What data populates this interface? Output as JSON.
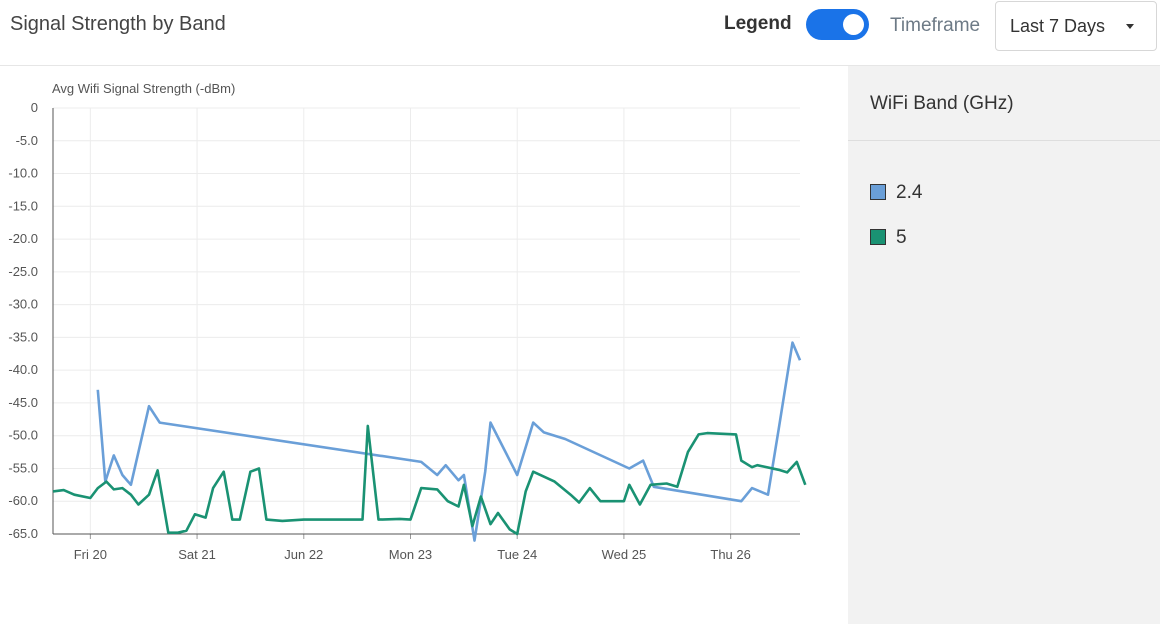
{
  "header": {
    "title": "Signal Strength by Band",
    "legend_label": "Legend",
    "legend_on": true,
    "timeframe_label": "Timeframe",
    "timeframe_value": "Last 7 Days"
  },
  "legend_panel": {
    "title": "WiFi Band (GHz)",
    "items": [
      {
        "label": "2.4",
        "color": "#6a9fd8"
      },
      {
        "label": "5",
        "color": "#1a9273"
      }
    ]
  },
  "chart_data": {
    "type": "line",
    "ylabel": "Avg Wifi Signal Strength (-dBm)",
    "ylim": [
      -65,
      0
    ],
    "xlim": [
      -0.35,
      6.65
    ],
    "y_ticks": [
      "0",
      "-5.0",
      "-10.0",
      "-15.0",
      "-20.0",
      "-25.0",
      "-30.0",
      "-35.0",
      "-40.0",
      "-45.0",
      "-50.0",
      "-55.0",
      "-60.0",
      "-65.0"
    ],
    "x_tick_labels": [
      "Fri 20",
      "Sat 21",
      "Jun 22",
      "Mon 23",
      "Tue 24",
      "Wed 25",
      "Thu 26"
    ],
    "grid": true,
    "series": [
      {
        "name": "2.4",
        "color": "#6a9fd8",
        "points": [
          [
            0.07,
            -43
          ],
          [
            0.14,
            -57
          ],
          [
            0.22,
            -53
          ],
          [
            0.3,
            -56
          ],
          [
            0.38,
            -57.5
          ],
          [
            0.55,
            -45.5
          ],
          [
            0.65,
            -48
          ],
          [
            3.1,
            -54
          ],
          [
            3.25,
            -56
          ],
          [
            3.33,
            -54.5
          ],
          [
            3.45,
            -56.8
          ],
          [
            3.5,
            -56
          ],
          [
            3.6,
            -66
          ],
          [
            3.7,
            -55.5
          ],
          [
            3.75,
            -48
          ],
          [
            4.0,
            -56
          ],
          [
            4.15,
            -48
          ],
          [
            4.25,
            -49.5
          ],
          [
            4.45,
            -50.5
          ],
          [
            5.05,
            -55
          ],
          [
            5.18,
            -53.8
          ],
          [
            5.28,
            -57.8
          ],
          [
            6.1,
            -60
          ],
          [
            6.2,
            -58
          ],
          [
            6.35,
            -59
          ],
          [
            6.45,
            -49
          ],
          [
            6.58,
            -35.8
          ],
          [
            6.65,
            -38.5
          ]
        ]
      },
      {
        "name": "5",
        "color": "#1a9273",
        "points": [
          [
            -0.35,
            -58.5
          ],
          [
            -0.25,
            -58.3
          ],
          [
            -0.15,
            -59
          ],
          [
            0.0,
            -59.5
          ],
          [
            0.07,
            -58
          ],
          [
            0.15,
            -57
          ],
          [
            0.22,
            -58.2
          ],
          [
            0.3,
            -58
          ],
          [
            0.38,
            -59
          ],
          [
            0.45,
            -60.5
          ],
          [
            0.55,
            -59
          ],
          [
            0.63,
            -55.3
          ],
          [
            0.73,
            -64.8
          ],
          [
            0.82,
            -64.8
          ],
          [
            0.9,
            -64.5
          ],
          [
            0.98,
            -62
          ],
          [
            1.08,
            -62.5
          ],
          [
            1.15,
            -58
          ],
          [
            1.25,
            -55.5
          ],
          [
            1.33,
            -62.8
          ],
          [
            1.4,
            -62.8
          ],
          [
            1.5,
            -55.5
          ],
          [
            1.58,
            -55
          ],
          [
            1.65,
            -62.8
          ],
          [
            1.8,
            -63
          ],
          [
            2.0,
            -62.8
          ],
          [
            2.2,
            -62.8
          ],
          [
            2.4,
            -62.8
          ],
          [
            2.55,
            -62.8
          ],
          [
            2.6,
            -48.5
          ],
          [
            2.7,
            -62.8
          ],
          [
            2.9,
            -62.7
          ],
          [
            3.0,
            -62.8
          ],
          [
            3.1,
            -58
          ],
          [
            3.25,
            -58.2
          ],
          [
            3.35,
            -60
          ],
          [
            3.45,
            -60.8
          ],
          [
            3.5,
            -57.5
          ],
          [
            3.58,
            -63.8
          ],
          [
            3.66,
            -59.3
          ],
          [
            3.75,
            -63.5
          ],
          [
            3.82,
            -61.8
          ],
          [
            3.93,
            -64.3
          ],
          [
            4.0,
            -65
          ],
          [
            4.08,
            -58.5
          ],
          [
            4.15,
            -55.5
          ],
          [
            4.35,
            -57
          ],
          [
            4.5,
            -59
          ],
          [
            4.58,
            -60.2
          ],
          [
            4.68,
            -58
          ],
          [
            4.78,
            -60
          ],
          [
            5.0,
            -60
          ],
          [
            5.05,
            -57.5
          ],
          [
            5.15,
            -60.5
          ],
          [
            5.25,
            -57.5
          ],
          [
            5.4,
            -57.3
          ],
          [
            5.5,
            -57.8
          ],
          [
            5.6,
            -52.5
          ],
          [
            5.7,
            -49.8
          ],
          [
            5.78,
            -49.6
          ],
          [
            5.9,
            -49.7
          ],
          [
            6.05,
            -49.8
          ],
          [
            6.1,
            -53.8
          ],
          [
            6.2,
            -54.8
          ],
          [
            6.25,
            -54.5
          ],
          [
            6.45,
            -55.2
          ],
          [
            6.53,
            -55.6
          ],
          [
            6.62,
            -54
          ],
          [
            6.7,
            -57.5
          ]
        ]
      }
    ]
  }
}
